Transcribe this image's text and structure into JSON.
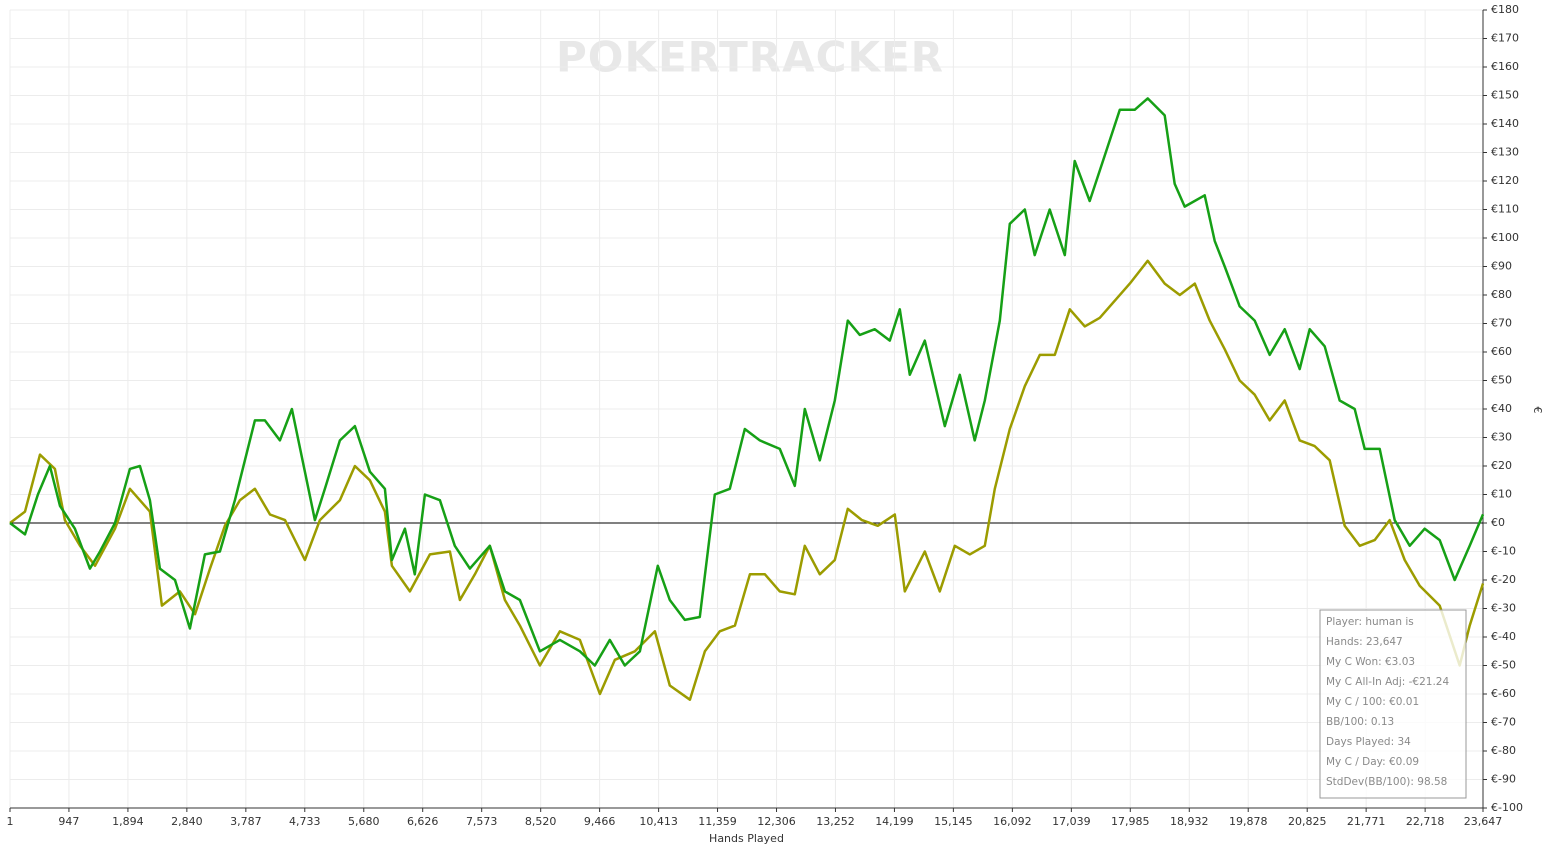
{
  "chart_data": {
    "type": "line",
    "watermark": "POKERTRACKER",
    "x_label": "Hands Played",
    "y_label": "€",
    "xlim": [
      1,
      23647
    ],
    "ylim": [
      -100,
      180
    ],
    "grid": true,
    "xticks": [
      1,
      947,
      {
        "value": 1894,
        "label": "1,894"
      },
      {
        "value": 2840,
        "label": "2,840"
      },
      {
        "value": 3787,
        "label": "3,787"
      },
      {
        "value": 4733,
        "label": "4,733"
      },
      {
        "value": 5680,
        "label": "5,680"
      },
      {
        "value": 6626,
        "label": "6,626"
      },
      {
        "value": 7573,
        "label": "7,573"
      },
      {
        "value": 8520,
        "label": "8,520"
      },
      {
        "value": 9466,
        "label": "9,466"
      },
      {
        "value": 10413,
        "label": "10,413"
      },
      {
        "value": 11359,
        "label": "11,359"
      },
      {
        "value": 12306,
        "label": "12,306"
      },
      {
        "value": 13252,
        "label": "13,252"
      },
      {
        "value": 14199,
        "label": "14,199"
      },
      {
        "value": 15145,
        "label": "15,145"
      },
      {
        "value": 16092,
        "label": "16,092"
      },
      {
        "value": 17039,
        "label": "17,039"
      },
      {
        "value": 17985,
        "label": "17,985"
      },
      {
        "value": 18932,
        "label": "18,932"
      },
      {
        "value": 19878,
        "label": "19,878"
      },
      {
        "value": 20825,
        "label": "20,825"
      },
      {
        "value": 21771,
        "label": "21,771"
      },
      {
        "value": 22718,
        "label": "22,718"
      },
      {
        "value": 23647,
        "label": "23,647"
      }
    ],
    "yticks": [
      {
        "value": -100,
        "label": "€-100"
      },
      {
        "value": -90,
        "label": "€-90"
      },
      {
        "value": -80,
        "label": "€-80"
      },
      {
        "value": -70,
        "label": "€-70"
      },
      {
        "value": -60,
        "label": "€-60"
      },
      {
        "value": -50,
        "label": "€-50"
      },
      {
        "value": -40,
        "label": "€-40"
      },
      {
        "value": -30,
        "label": "€-30"
      },
      {
        "value": -20,
        "label": "€-20"
      },
      {
        "value": -10,
        "label": "€-10"
      },
      {
        "value": 0,
        "label": "€0"
      },
      {
        "value": 10,
        "label": "€10"
      },
      {
        "value": 20,
        "label": "€20"
      },
      {
        "value": 30,
        "label": "€30"
      },
      {
        "value": 40,
        "label": "€40"
      },
      {
        "value": 50,
        "label": "€50"
      },
      {
        "value": 60,
        "label": "€60"
      },
      {
        "value": 70,
        "label": "€70"
      },
      {
        "value": 80,
        "label": "€80"
      },
      {
        "value": 90,
        "label": "€90"
      },
      {
        "value": 100,
        "label": "€100"
      },
      {
        "value": 110,
        "label": "€110"
      },
      {
        "value": 120,
        "label": "€120"
      },
      {
        "value": 130,
        "label": "€130"
      },
      {
        "value": 140,
        "label": "€140"
      },
      {
        "value": 150,
        "label": "€150"
      },
      {
        "value": 160,
        "label": "€160"
      },
      {
        "value": 170,
        "label": "€170"
      },
      {
        "value": 180,
        "label": "€180"
      }
    ],
    "series": [
      {
        "color": "#9c9c00",
        "x": [
          1,
          241,
          482,
          722,
          883,
          1124,
          1365,
          1686,
          1926,
          2247,
          2440,
          2729,
          2970,
          3211,
          3451,
          3692,
          3933,
          4174,
          4415,
          4735,
          4976,
          5297,
          5538,
          5778,
          6019,
          6131,
          6421,
          6742,
          7063,
          7224,
          7464,
          7704,
          7945,
          8186,
          8507,
          8828,
          9149,
          9471,
          9711,
          10032,
          10354,
          10593,
          10915,
          11156,
          11396,
          11637,
          11878,
          12119,
          12359,
          12599,
          12760,
          13001,
          13241,
          13450,
          13676,
          13932,
          14205,
          14365,
          14686,
          14927,
          15168,
          15409,
          15649,
          15810,
          16050,
          16291,
          16532,
          16773,
          17014,
          17254,
          17495,
          17736,
          17977,
          18265,
          18538,
          18779,
          19020,
          19260,
          19501,
          19742,
          19982,
          20223,
          20464,
          20705,
          20945,
          21186,
          21427,
          21668,
          21908,
          22149,
          22390,
          22631,
          22952,
          23273,
          23433,
          23647
        ],
        "values": [
          0,
          4,
          24,
          19,
          1,
          -8,
          -15,
          -2,
          12,
          4,
          -29,
          -24,
          -32,
          -16,
          -1,
          8,
          12,
          3,
          1,
          -13,
          1,
          8,
          20,
          15,
          4,
          -15,
          -24,
          -11,
          -10,
          -27,
          -18,
          -8,
          -27,
          -36,
          -50,
          -38,
          -41,
          -60,
          -48,
          -45,
          -38,
          -57,
          -62,
          -45,
          -38,
          -36,
          -18,
          -18,
          -24,
          -25,
          -8,
          -18,
          -13,
          5,
          1,
          -1,
          3,
          -24,
          -10,
          -24,
          -8,
          -11,
          -8,
          12,
          33,
          48,
          59,
          59,
          75,
          69,
          72,
          78,
          84,
          92,
          84,
          80,
          84,
          71,
          61,
          50,
          45,
          36,
          43,
          29,
          27,
          22,
          -1,
          -8,
          -6,
          1,
          -13,
          -22,
          -29,
          -50,
          -36,
          -21.24
        ]
      },
      {
        "color": "#16a016",
        "x": [
          1,
          241,
          449,
          642,
          803,
          1043,
          1284,
          1445,
          1686,
          1926,
          2087,
          2247,
          2408,
          2649,
          2889,
          3130,
          3371,
          3612,
          3772,
          3933,
          4093,
          4334,
          4527,
          4735,
          4896,
          5056,
          5297,
          5538,
          5778,
          6019,
          6131,
          6340,
          6500,
          6661,
          6902,
          7142,
          7383,
          7704,
          7945,
          8186,
          8507,
          8828,
          9149,
          9389,
          9630,
          9871,
          10112,
          10400,
          10593,
          10834,
          11075,
          11315,
          11556,
          11797,
          12038,
          12359,
          12599,
          12760,
          13001,
          13241,
          13450,
          13643,
          13884,
          14124,
          14285,
          14445,
          14686,
          15007,
          15248,
          15488,
          15649,
          15890,
          16050,
          16291,
          16451,
          16692,
          16933,
          17093,
          17334,
          17575,
          17816,
          18056,
          18265,
          18538,
          18698,
          18859,
          19180,
          19340,
          19501,
          19742,
          19982,
          20223,
          20464,
          20705,
          20865,
          21106,
          21347,
          21587,
          21748,
          21989,
          22229,
          22470,
          22711,
          22952,
          23192,
          23433,
          23647
        ],
        "values": [
          0,
          -4,
          10,
          20,
          6,
          -2,
          -16,
          -10,
          0,
          19,
          20,
          8,
          -16,
          -20,
          -37,
          -11,
          -10,
          8,
          22,
          36,
          36,
          29,
          40,
          18,
          1,
          12,
          29,
          34,
          18,
          12,
          -13,
          -2,
          -18,
          10,
          8,
          -8,
          -16,
          -8,
          -24,
          -27,
          -45,
          -41,
          -45,
          -50,
          -41,
          -50,
          -45,
          -15,
          -27,
          -34,
          -33,
          10,
          12,
          33,
          29,
          26,
          13,
          40,
          22,
          43,
          71,
          66,
          68,
          64,
          75,
          52,
          64,
          34,
          52,
          29,
          43,
          71,
          105,
          110,
          94,
          110,
          94,
          127,
          113,
          129,
          145,
          145,
          149,
          143,
          119,
          111,
          115,
          99,
          90,
          76,
          71,
          59,
          68,
          54,
          68,
          62,
          43,
          40,
          26,
          26,
          1,
          -8,
          -2,
          -6,
          -20,
          -8,
          3.03
        ]
      }
    ],
    "info_box": {
      "lines": [
        "Player: human is",
        "Hands: 23,647",
        "My C Won: €3.03",
        "My C All-In Adj: -€21.24",
        "My C / 100: €0.01",
        "BB/100: 0.13",
        "Days Played: 34",
        "My C / Day: €0.09",
        "StdDev(BB/100): 98.58"
      ]
    }
  }
}
